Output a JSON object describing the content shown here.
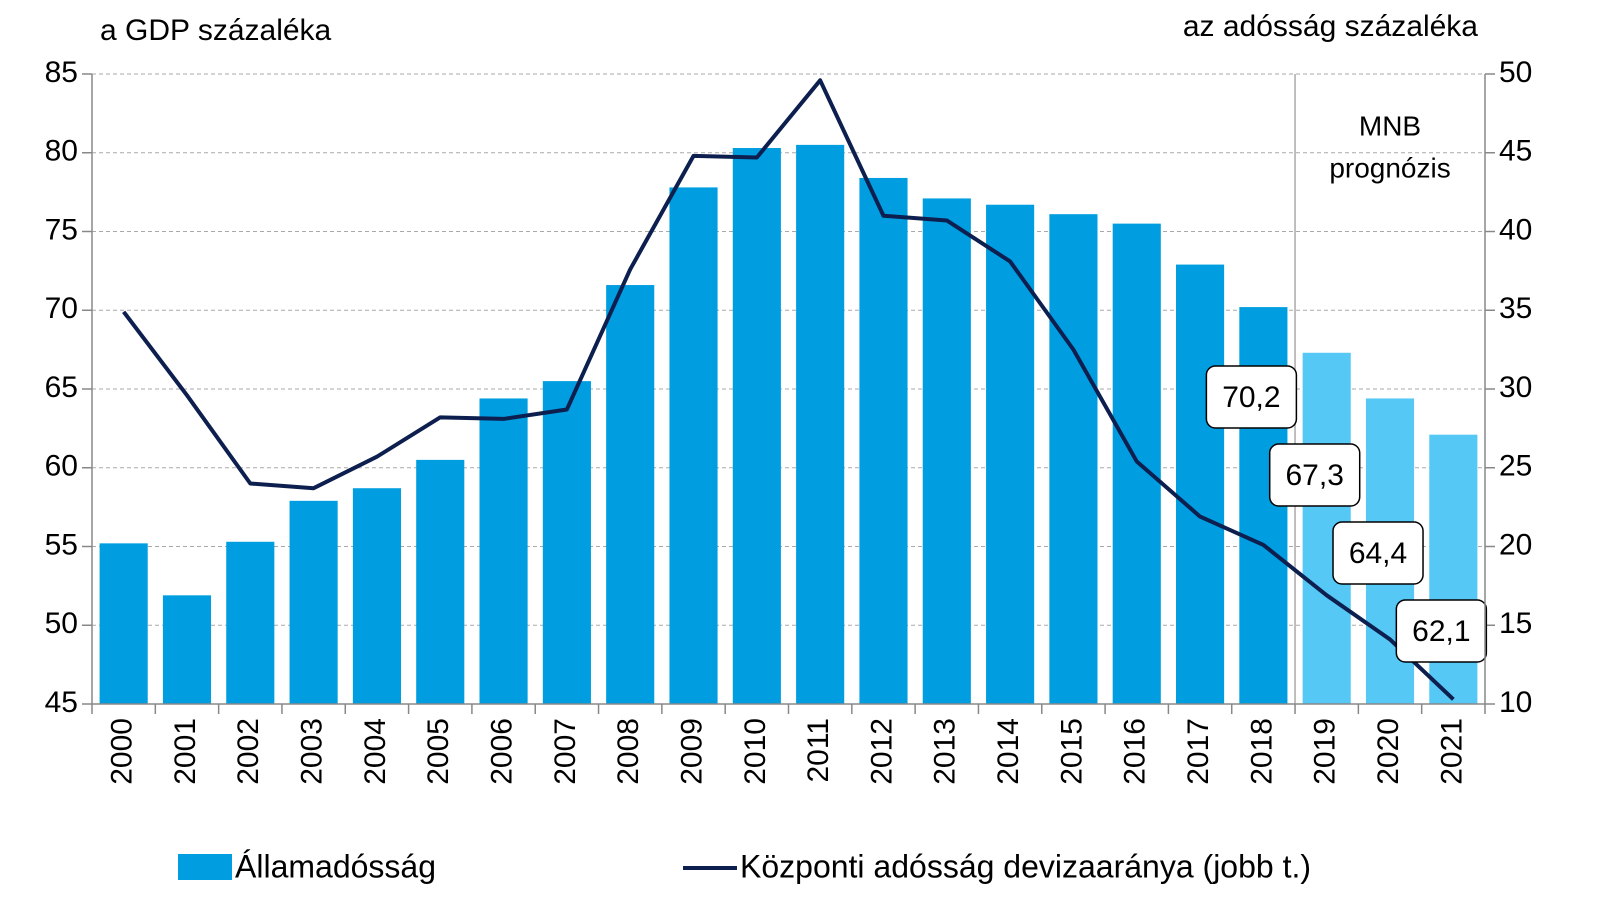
{
  "chart_data": {
    "type": "bar_line",
    "y_axis_title": "a GDP százaléka",
    "y2_axis_title": "az adósság százaléka",
    "categories": [
      "2000",
      "2001",
      "2002",
      "2003",
      "2004",
      "2005",
      "2006",
      "2007",
      "2008",
      "2009",
      "2010",
      "2011",
      "2012",
      "2013",
      "2014",
      "2015",
      "2016",
      "2017",
      "2018",
      "2019",
      "2020",
      "2021"
    ],
    "series": [
      {
        "name": "Államadósság",
        "type": "bar",
        "color": "#009ee0",
        "colors": [
          "#009ee0",
          "#009ee0",
          "#009ee0",
          "#009ee0",
          "#009ee0",
          "#009ee0",
          "#009ee0",
          "#009ee0",
          "#009ee0",
          "#009ee0",
          "#009ee0",
          "#009ee0",
          "#009ee0",
          "#009ee0",
          "#009ee0",
          "#009ee0",
          "#009ee0",
          "#009ee0",
          "#009ee0",
          "#56c8f6",
          "#56c8f6",
          "#56c8f6"
        ],
        "values": [
          55.2,
          51.9,
          55.3,
          57.9,
          58.7,
          60.5,
          64.4,
          65.5,
          71.6,
          77.8,
          80.3,
          80.5,
          78.4,
          77.1,
          76.7,
          76.1,
          75.5,
          72.9,
          70.2,
          67.3,
          64.4,
          62.1
        ],
        "value_labels": [
          null,
          null,
          null,
          null,
          null,
          null,
          null,
          null,
          null,
          null,
          null,
          null,
          null,
          null,
          null,
          null,
          null,
          null,
          "70,2",
          "67,3",
          "64,4",
          "62,1"
        ]
      },
      {
        "name": "Központi adósság devizaaránya (jobb t.)",
        "type": "line",
        "axis": "y2",
        "color": "#0d1f4f",
        "values": [
          34.9,
          29.6,
          24.0,
          23.7,
          25.7,
          28.2,
          28.1,
          28.7,
          37.6,
          44.8,
          44.7,
          49.6,
          41.0,
          40.7,
          38.1,
          32.5,
          25.4,
          21.9,
          20.1,
          16.9,
          14.1,
          10.3
        ]
      }
    ],
    "ylim": [
      45,
      85
    ],
    "yticks": [
      45,
      50,
      55,
      60,
      65,
      70,
      75,
      80,
      85
    ],
    "y2lim": [
      10,
      50
    ],
    "y2ticks": [
      10,
      15,
      20,
      25,
      30,
      35,
      40,
      45,
      50
    ],
    "grid": true,
    "annotation": [
      "MNB",
      "prognózis"
    ],
    "forecast_start": "2019"
  }
}
